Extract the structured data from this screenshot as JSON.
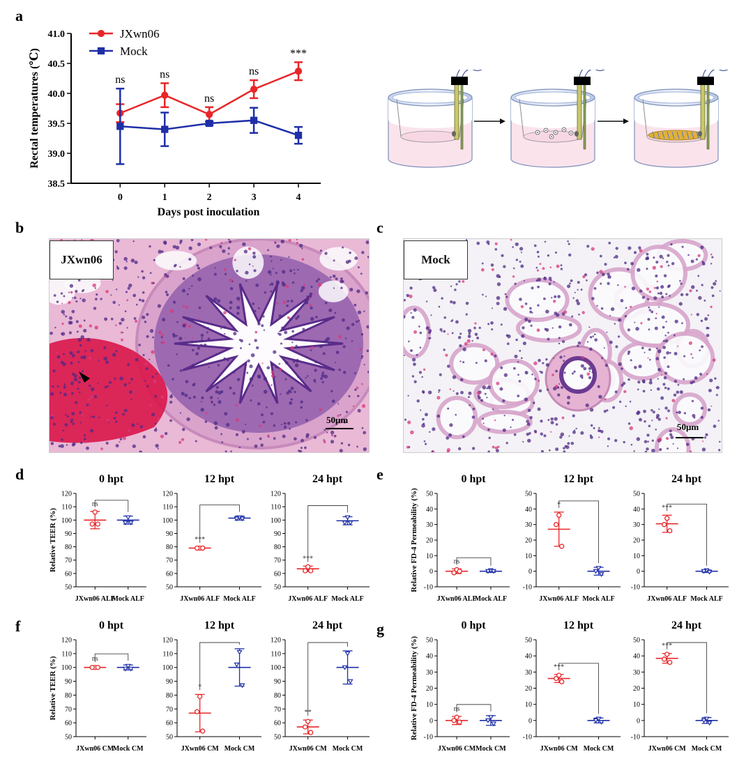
{
  "panel_letters": {
    "a": "a",
    "b": "b",
    "c": "c",
    "d": "d",
    "e": "e",
    "f": "f",
    "g": "g"
  },
  "colors": {
    "red": "#e8262a",
    "blue": "#1f2fa8",
    "tissue_pink": "#f4cfe0",
    "nuclei": "#5a2c8a",
    "blood": "#d9164a"
  },
  "histology": {
    "b": {
      "label": "JXwn06",
      "scale_label": "50μm"
    },
    "c": {
      "label": "Mock",
      "scale_label": "50μm"
    }
  },
  "chart_data": [
    {
      "id": "a",
      "type": "line",
      "title": "",
      "xlabel": "Days post inoculation",
      "ylabel": "Rectal temperatures (℃)",
      "x": [
        0,
        1,
        2,
        3,
        4
      ],
      "ylim": [
        38.5,
        41.0
      ],
      "yticks": [
        "38.5",
        "39.0",
        "39.5",
        "40.0",
        "40.5",
        "41.0"
      ],
      "legend": "top-left",
      "annotations": [
        "ns",
        "ns",
        "ns",
        "ns",
        "***"
      ],
      "series": [
        {
          "name": "JXwn06",
          "color": "#e8262a",
          "marker": "circle",
          "values": [
            39.67,
            39.97,
            39.65,
            40.07,
            40.37
          ],
          "err": [
            0.15,
            0.2,
            0.12,
            0.15,
            0.15
          ]
        },
        {
          "name": "Mock",
          "color": "#1f2fa8",
          "marker": "square",
          "values": [
            39.45,
            39.4,
            39.5,
            39.55,
            39.3
          ],
          "err": [
            0.63,
            0.28,
            0.03,
            0.21,
            0.14
          ]
        }
      ]
    },
    {
      "id": "d0",
      "type": "scatter",
      "title": "0 hpt",
      "ylabel": "Relative TEER (%)",
      "ylim": [
        50,
        120
      ],
      "yticks": [
        "50",
        "60",
        "70",
        "80",
        "90",
        "100",
        "110",
        "120"
      ],
      "categories": [
        "JXwn06 ALF",
        "Mock ALF"
      ],
      "significance": "ns",
      "groups": [
        {
          "color": "#e8262a",
          "marker": "circle",
          "mean": 100,
          "sd": 6.5,
          "points": [
            106,
            97,
            97
          ]
        },
        {
          "color": "#1f2fa8",
          "marker": "triangle",
          "mean": 100,
          "sd": 3,
          "points": [
            102,
            98,
            98
          ]
        }
      ]
    },
    {
      "id": "d12",
      "type": "scatter",
      "title": "12 hpt",
      "ylabel": "",
      "ylim": [
        50,
        120
      ],
      "yticks": [
        "50",
        "60",
        "70",
        "80",
        "90",
        "100",
        "110",
        "120"
      ],
      "categories": [
        "JXwn06 ALF",
        "Mock ALF"
      ],
      "significance": "***",
      "groups": [
        {
          "color": "#e8262a",
          "marker": "circle",
          "mean": 79,
          "sd": 0.8,
          "points": [
            79,
            79,
            79
          ]
        },
        {
          "color": "#1f2fa8",
          "marker": "triangle",
          "mean": 101.5,
          "sd": 1.5,
          "points": [
            102,
            101,
            101
          ]
        }
      ]
    },
    {
      "id": "d24",
      "type": "scatter",
      "title": "24 hpt",
      "ylabel": "",
      "ylim": [
        50,
        120
      ],
      "yticks": [
        "50",
        "60",
        "70",
        "80",
        "90",
        "100",
        "110",
        "120"
      ],
      "categories": [
        "JXwn06 ALF",
        "Mock ALF"
      ],
      "significance": "***",
      "groups": [
        {
          "color": "#e8262a",
          "marker": "circle",
          "mean": 63.5,
          "sd": 2,
          "points": [
            65,
            62,
            62
          ]
        },
        {
          "color": "#1f2fa8",
          "marker": "triangle",
          "mean": 99.5,
          "sd": 3,
          "points": [
            102,
            98,
            98
          ]
        }
      ]
    },
    {
      "id": "e0",
      "type": "scatter",
      "title": "0 hpt",
      "ylabel": "Relative FD-4 Permeability (%)",
      "ylim": [
        -10,
        50
      ],
      "yticks": [
        "-10",
        "0",
        "10",
        "20",
        "30",
        "40",
        "50"
      ],
      "categories": [
        "JXwn06 ALF",
        "Mock ALF"
      ],
      "significance": "ns",
      "groups": [
        {
          "color": "#e8262a",
          "marker": "circle",
          "mean": 0,
          "sd": 1.5,
          "points": [
            1,
            -1,
            0
          ]
        },
        {
          "color": "#1f2fa8",
          "marker": "triangle",
          "mean": 0,
          "sd": 0.8,
          "points": [
            0.5,
            0,
            0
          ]
        }
      ]
    },
    {
      "id": "e12",
      "type": "scatter",
      "title": "12 hpt",
      "ylabel": "",
      "ylim": [
        -10,
        50
      ],
      "yticks": [
        "-10",
        "0",
        "10",
        "20",
        "30",
        "40",
        "50"
      ],
      "categories": [
        "JXwn06 ALF",
        "Mock ALF"
      ],
      "significance": "*",
      "groups": [
        {
          "color": "#e8262a",
          "marker": "circle",
          "mean": 27,
          "sd": 11,
          "points": [
            36,
            30,
            16
          ]
        },
        {
          "color": "#1f2fa8",
          "marker": "triangle",
          "mean": 0,
          "sd": 2.5,
          "points": [
            2,
            0,
            -2
          ]
        }
      ]
    },
    {
      "id": "e24",
      "type": "scatter",
      "title": "24 hpt",
      "ylabel": "",
      "ylim": [
        -10,
        50
      ],
      "yticks": [
        "-10",
        "0",
        "10",
        "20",
        "30",
        "40",
        "50"
      ],
      "categories": [
        "JXwn06 ALF",
        "Mock ALF"
      ],
      "significance": "***",
      "groups": [
        {
          "color": "#e8262a",
          "marker": "circle",
          "mean": 30.5,
          "sd": 5.5,
          "points": [
            34,
            30,
            26
          ]
        },
        {
          "color": "#1f2fa8",
          "marker": "triangle",
          "mean": 0,
          "sd": 0.8,
          "points": [
            0.5,
            0,
            -0.5
          ]
        }
      ]
    },
    {
      "id": "f0",
      "type": "scatter",
      "title": "0 hpt",
      "ylabel": "Relative TEER (%)",
      "ylim": [
        50,
        120
      ],
      "yticks": [
        "50",
        "60",
        "70",
        "80",
        "90",
        "100",
        "110",
        "120"
      ],
      "categories": [
        "JXwn06 CM",
        "Mock CM"
      ],
      "significance": "ns",
      "groups": [
        {
          "color": "#e8262a",
          "marker": "circle",
          "mean": 100,
          "sd": 0.8,
          "points": [
            100,
            100,
            100
          ]
        },
        {
          "color": "#1f2fa8",
          "marker": "triangle",
          "mean": 100,
          "sd": 1.8,
          "points": [
            101,
            99,
            99
          ]
        }
      ]
    },
    {
      "id": "f12",
      "type": "scatter",
      "title": "12 hpt",
      "ylabel": "",
      "ylim": [
        50,
        120
      ],
      "yticks": [
        "50",
        "60",
        "70",
        "80",
        "90",
        "100",
        "110",
        "120"
      ],
      "categories": [
        "JXwn06 CM",
        "Mock CM"
      ],
      "significance": "*",
      "groups": [
        {
          "color": "#e8262a",
          "marker": "circle",
          "mean": 67,
          "sd": 13.5,
          "points": [
            79,
            68,
            54
          ]
        },
        {
          "color": "#1f2fa8",
          "marker": "triangle",
          "mean": 100,
          "sd": 13.5,
          "points": [
            111,
            102,
            87
          ]
        }
      ]
    },
    {
      "id": "f24",
      "type": "scatter",
      "title": "24 hpt",
      "ylabel": "",
      "ylim": [
        50,
        120
      ],
      "yticks": [
        "50",
        "60",
        "70",
        "80",
        "90",
        "100",
        "110",
        "120"
      ],
      "categories": [
        "JXwn06 CM",
        "Mock CM"
      ],
      "significance": "**",
      "groups": [
        {
          "color": "#e8262a",
          "marker": "circle",
          "mean": 57,
          "sd": 5,
          "points": [
            61,
            57,
            53
          ]
        },
        {
          "color": "#1f2fa8",
          "marker": "triangle",
          "mean": 100,
          "sd": 12,
          "points": [
            110,
            100,
            90
          ]
        }
      ]
    },
    {
      "id": "g0",
      "type": "scatter",
      "title": "0 hpt",
      "ylabel": "Relative FD-4 Permeability (%)",
      "ylim": [
        -10,
        50
      ],
      "yticks": [
        "-10",
        "0",
        "10",
        "20",
        "30",
        "40",
        "50"
      ],
      "categories": [
        "JXwn06 CM",
        "Mock CM"
      ],
      "significance": "ns",
      "groups": [
        {
          "color": "#e8262a",
          "marker": "circle",
          "mean": 0,
          "sd": 2.5,
          "points": [
            2,
            0,
            -1
          ]
        },
        {
          "color": "#1f2fa8",
          "marker": "triangle",
          "mean": 0,
          "sd": 3,
          "points": [
            2,
            0,
            -2
          ]
        }
      ]
    },
    {
      "id": "g12",
      "type": "scatter",
      "title": "12 hpt",
      "ylabel": "",
      "ylim": [
        -10,
        50
      ],
      "yticks": [
        "-10",
        "0",
        "10",
        "20",
        "30",
        "40",
        "50"
      ],
      "categories": [
        "JXwn06 CM",
        "Mock CM"
      ],
      "significance": "***",
      "groups": [
        {
          "color": "#e8262a",
          "marker": "circle",
          "mean": 26,
          "sd": 2.5,
          "points": [
            28,
            26,
            24
          ]
        },
        {
          "color": "#1f2fa8",
          "marker": "triangle",
          "mean": 0,
          "sd": 1.5,
          "points": [
            1,
            0,
            -1
          ]
        }
      ]
    },
    {
      "id": "g24",
      "type": "scatter",
      "title": "24 hpt",
      "ylabel": "",
      "ylim": [
        -10,
        50
      ],
      "yticks": [
        "-10",
        "0",
        "10",
        "20",
        "30",
        "40",
        "50"
      ],
      "categories": [
        "JXwn06 CM",
        "Mock CM"
      ],
      "significance": "***",
      "groups": [
        {
          "color": "#e8262a",
          "marker": "circle",
          "mean": 38.5,
          "sd": 3,
          "points": [
            41,
            38,
            36
          ]
        },
        {
          "color": "#1f2fa8",
          "marker": "triangle",
          "mean": 0,
          "sd": 1.8,
          "points": [
            1,
            0,
            -1.5
          ]
        }
      ]
    }
  ]
}
